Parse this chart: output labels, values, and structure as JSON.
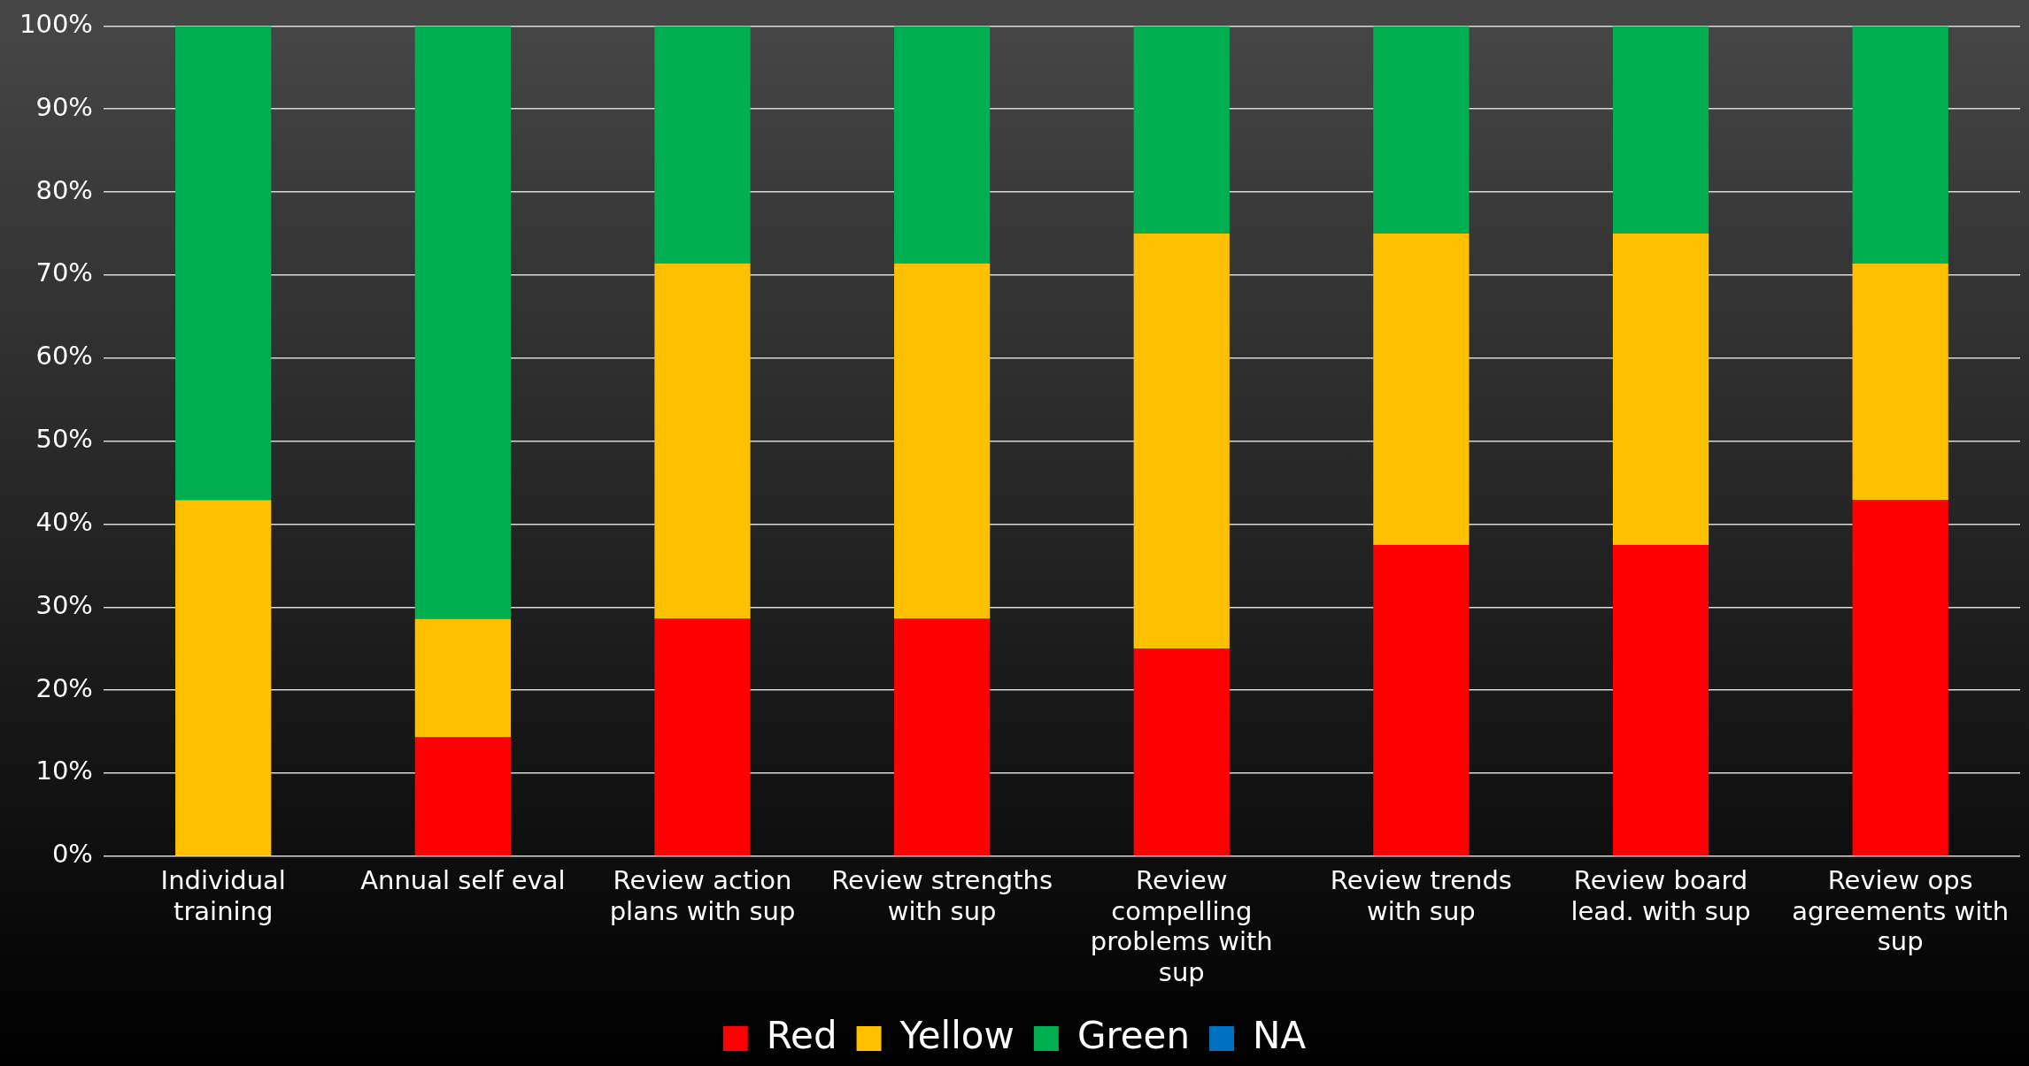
{
  "chart_data": {
    "type": "bar",
    "stacked": true,
    "categories": [
      "Individual training",
      "Annual self eval",
      "Review action plans with sup",
      "Review strengths with sup",
      "Review compelling problems with sup",
      "Review trends with sup",
      "Review board lead. with sup",
      "Review ops agreements with sup"
    ],
    "series": [
      {
        "name": "Red",
        "color": "#ff0000",
        "values": [
          0,
          14.3,
          28.6,
          28.6,
          25,
          37.5,
          37.5,
          42.9
        ]
      },
      {
        "name": "Yellow",
        "color": "#ffc000",
        "values": [
          42.9,
          14.3,
          42.8,
          42.8,
          50,
          37.5,
          37.5,
          28.5
        ]
      },
      {
        "name": "Green",
        "color": "#00b050",
        "values": [
          57.1,
          71.4,
          28.6,
          28.6,
          25,
          25,
          25,
          28.6
        ]
      },
      {
        "name": "NA",
        "color": "#0070c0",
        "values": [
          0,
          0,
          0,
          0,
          0,
          0,
          0,
          0
        ]
      }
    ],
    "ylim": [
      0,
      100
    ],
    "yticks": [
      {
        "value": 0,
        "label": "0%"
      },
      {
        "value": 10,
        "label": "10%"
      },
      {
        "value": 20,
        "label": "20%"
      },
      {
        "value": 30,
        "label": "30%"
      },
      {
        "value": 40,
        "label": "40%"
      },
      {
        "value": 50,
        "label": "50%"
      },
      {
        "value": 60,
        "label": "60%"
      },
      {
        "value": 70,
        "label": "70%"
      },
      {
        "value": 80,
        "label": "80%"
      },
      {
        "value": 90,
        "label": "90%"
      },
      {
        "value": 100,
        "label": "100%"
      }
    ],
    "grid": "y",
    "legend": "bottom"
  }
}
